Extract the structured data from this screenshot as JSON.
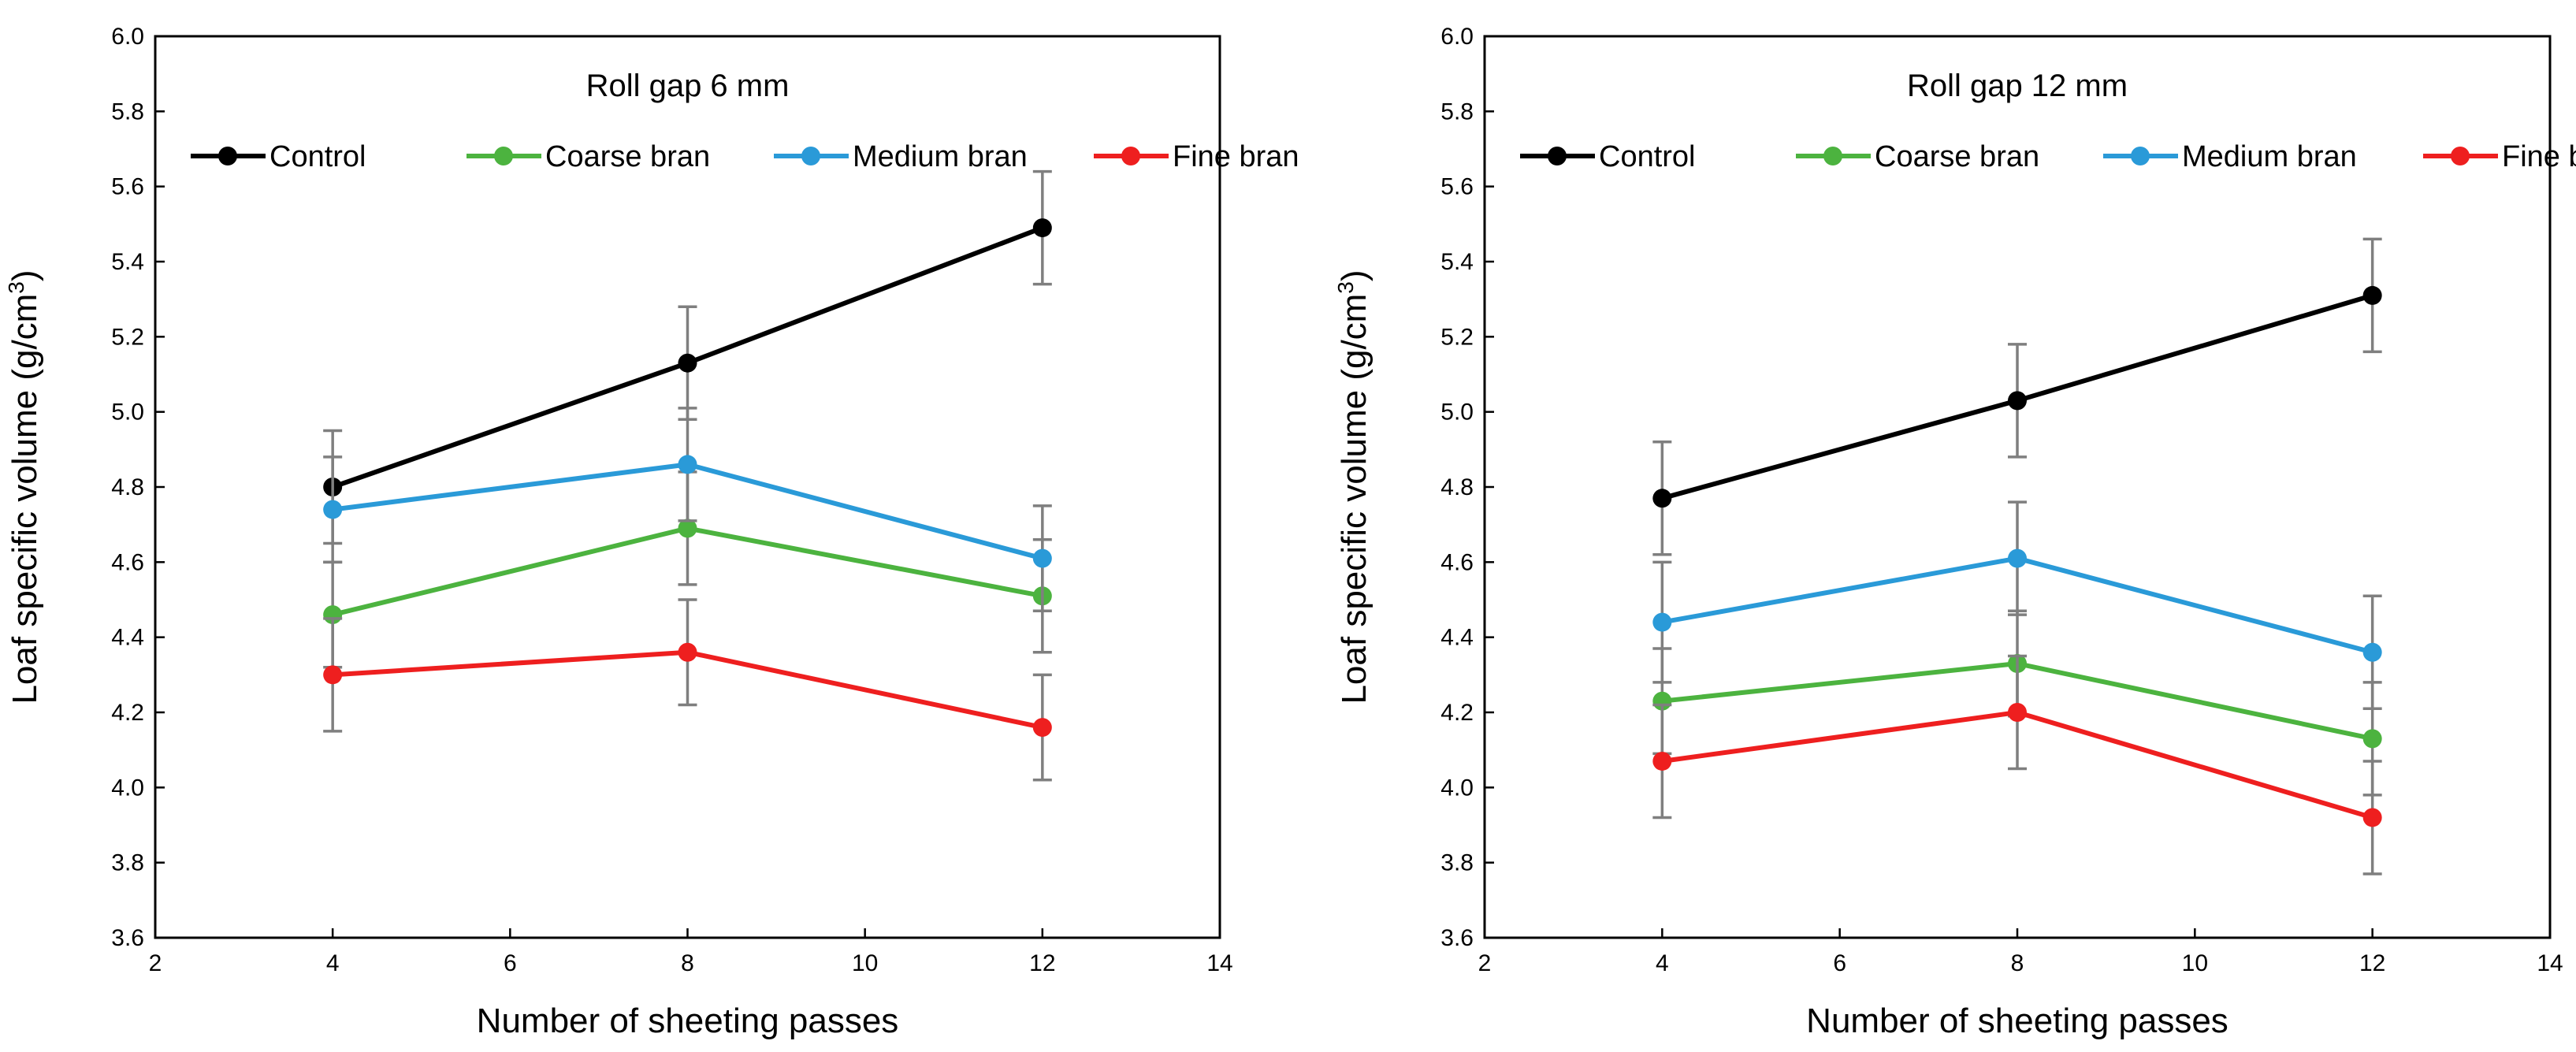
{
  "chart_data": [
    {
      "type": "line",
      "title": "Roll gap 6 mm",
      "xlabel": "Number of sheeting passes",
      "ylabel": "Loaf specific volume (g/cm",
      "ylabel_sup": "3",
      "ylabel_close": ")",
      "xlim": [
        2,
        14
      ],
      "ylim": [
        3.6,
        6.0
      ],
      "xticks": [
        2,
        4,
        6,
        8,
        10,
        12,
        14
      ],
      "xtick_labels": [
        "2",
        "4",
        "6",
        "8",
        "10",
        "12",
        "14"
      ],
      "yticks": [
        3.6,
        3.8,
        4.0,
        4.2,
        4.4,
        4.6,
        4.8,
        5.0,
        5.2,
        5.4,
        5.6,
        5.8,
        6.0
      ],
      "ytick_labels": [
        "3.6",
        "3.8",
        "4.0",
        "4.2",
        "4.4",
        "4.6",
        "4.8",
        "5.0",
        "5.2",
        "5.4",
        "5.6",
        "5.8",
        "6.0"
      ],
      "x": [
        4,
        8,
        12
      ],
      "series": [
        {
          "name": "Control",
          "color": "#000000",
          "values": [
            4.8,
            5.13,
            5.49
          ],
          "errors": [
            0.15,
            0.15,
            0.15
          ]
        },
        {
          "name": "Coarse bran",
          "color": "#4CB33F",
          "values": [
            4.46,
            4.69,
            4.51
          ],
          "errors": [
            0.14,
            0.15,
            0.15
          ]
        },
        {
          "name": "Medium bran",
          "color": "#2A9AD8",
          "values": [
            4.74,
            4.86,
            4.61
          ],
          "errors": [
            0.14,
            0.15,
            0.14
          ]
        },
        {
          "name": "Fine bran",
          "color": "#EE1F1F",
          "values": [
            4.3,
            4.36,
            4.16
          ],
          "errors": [
            0.15,
            0.14,
            0.14
          ]
        }
      ],
      "legend_position": "top"
    },
    {
      "type": "line",
      "title": "Roll gap 12 mm",
      "xlabel": "Number of sheeting passes",
      "ylabel": "Loaf specific volume (g/cm",
      "ylabel_sup": "3",
      "ylabel_close": ")",
      "xlim": [
        2,
        14
      ],
      "ylim": [
        3.6,
        6.0
      ],
      "xticks": [
        2,
        4,
        6,
        8,
        10,
        12,
        14
      ],
      "xtick_labels": [
        "2",
        "4",
        "6",
        "8",
        "10",
        "12",
        "14"
      ],
      "yticks": [
        3.6,
        3.8,
        4.0,
        4.2,
        4.4,
        4.6,
        4.8,
        5.0,
        5.2,
        5.4,
        5.6,
        5.8,
        6.0
      ],
      "ytick_labels": [
        "3.6",
        "3.8",
        "4.0",
        "4.2",
        "4.4",
        "4.6",
        "4.8",
        "5.0",
        "5.2",
        "5.4",
        "5.6",
        "5.8",
        "6.0"
      ],
      "x": [
        4,
        8,
        12
      ],
      "series": [
        {
          "name": "Control",
          "color": "#000000",
          "values": [
            4.77,
            5.03,
            5.31
          ],
          "errors": [
            0.15,
            0.15,
            0.15
          ]
        },
        {
          "name": "Coarse bran",
          "color": "#4CB33F",
          "values": [
            4.23,
            4.33,
            4.13
          ],
          "errors": [
            0.14,
            0.14,
            0.15
          ]
        },
        {
          "name": "Medium bran",
          "color": "#2A9AD8",
          "values": [
            4.44,
            4.61,
            4.36
          ],
          "errors": [
            0.16,
            0.15,
            0.15
          ]
        },
        {
          "name": "Fine bran",
          "color": "#EE1F1F",
          "values": [
            4.07,
            4.2,
            3.92
          ],
          "errors": [
            0.15,
            0.15,
            0.15
          ]
        }
      ],
      "legend_position": "top"
    }
  ]
}
